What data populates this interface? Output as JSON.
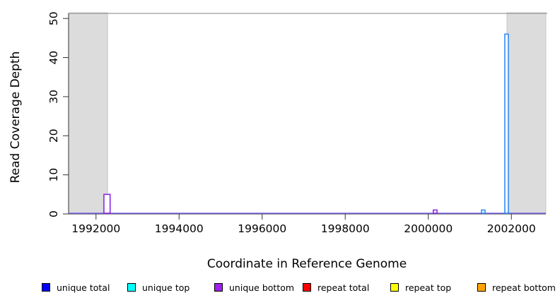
{
  "chart_data": {
    "type": "bar",
    "title": "",
    "xlabel": "Coordinate in Reference Genome",
    "ylabel": "Read Coverage Depth",
    "xlim": [
      1991340,
      2002830
    ],
    "ylim": [
      0,
      51.3
    ],
    "grid": false,
    "legend_position": "bottom",
    "xticks": [
      {
        "value": 1992000,
        "label": "1992000"
      },
      {
        "value": 1994000,
        "label": "1994000"
      },
      {
        "value": 1996000,
        "label": "1996000"
      },
      {
        "value": 1998000,
        "label": "1998000"
      },
      {
        "value": 2000000,
        "label": "2000000"
      },
      {
        "value": 2002000,
        "label": "2002000"
      }
    ],
    "yticks": [
      {
        "value": 0,
        "label": "0"
      },
      {
        "value": 10,
        "label": "10"
      },
      {
        "value": 20,
        "label": "20"
      },
      {
        "value": 30,
        "label": "30"
      },
      {
        "value": 40,
        "label": "40"
      },
      {
        "value": 50,
        "label": "50"
      }
    ],
    "masked_regions": [
      {
        "start": 1991340,
        "end": 1992280
      },
      {
        "start": 2001893,
        "end": 2002830
      }
    ],
    "baseline": {
      "value": 0,
      "color": "#7b68ee"
    },
    "spikes": [
      {
        "start": 1992190,
        "end": 1992340,
        "depth": 5,
        "color": "#8a2be2"
      },
      {
        "start": 2000120,
        "end": 2000210,
        "depth": 1,
        "color": "#8a2be2"
      },
      {
        "start": 2001280,
        "end": 2001365,
        "depth": 1,
        "color": "#2e8cf6"
      },
      {
        "start": 2001842,
        "end": 2001927,
        "depth": 46,
        "color": "#2e8cf6"
      }
    ],
    "legend": [
      {
        "label": "unique total",
        "color": "#0000ff"
      },
      {
        "label": "unique top",
        "color": "#00ffff"
      },
      {
        "label": "unique bottom",
        "color": "#a020f0"
      },
      {
        "label": "repeat total",
        "color": "#ff0000"
      },
      {
        "label": "repeat top",
        "color": "#ffff00"
      },
      {
        "label": "repeat bottom",
        "color": "#ffa500"
      }
    ],
    "colors": {
      "masked_fill": "#dcdcdc",
      "masked_border": "#bdbdbd",
      "top_border": "#9a9a9a",
      "axis": "#333333"
    }
  }
}
